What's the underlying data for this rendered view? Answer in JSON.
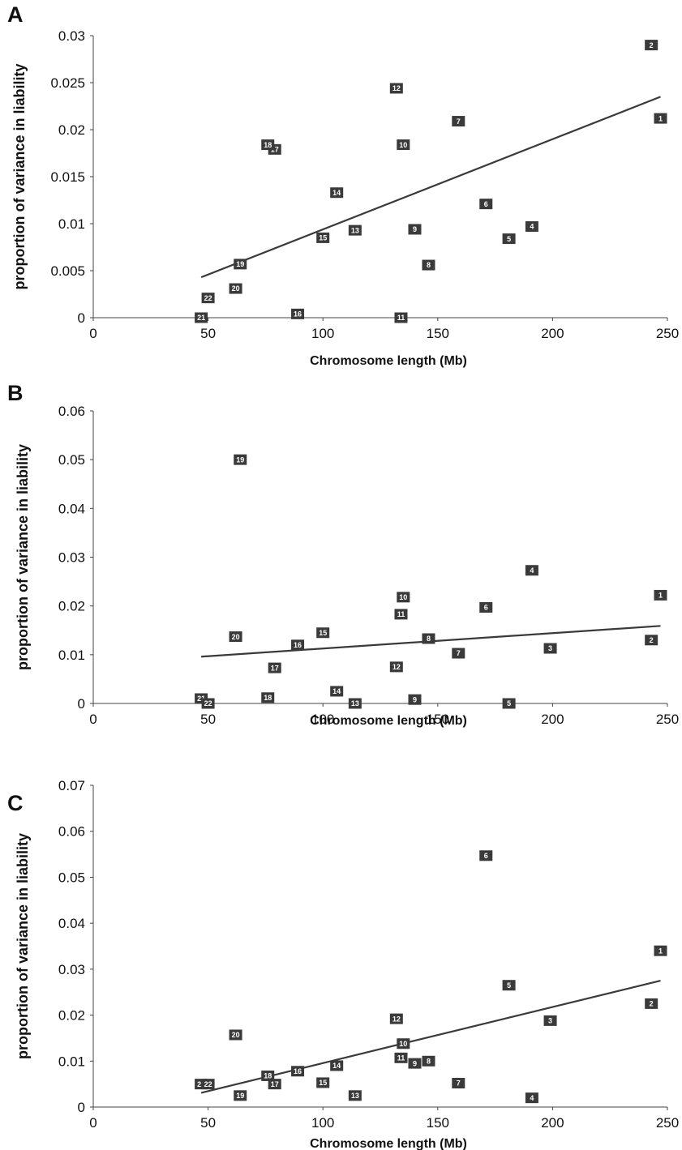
{
  "chart_data": [
    {
      "panel": "A",
      "type": "scatter",
      "xlabel": "Chromosome length (Mb)",
      "ylabel": "proportion of variance in liability",
      "xlim": [
        0,
        250
      ],
      "ylim": [
        0,
        0.03
      ],
      "x_ticks": [
        "0",
        "50",
        "100",
        "150",
        "200",
        "250"
      ],
      "y_ticks": [
        "0",
        "0.005",
        "0.01",
        "0.015",
        "0.02",
        "0.025",
        "0.03"
      ],
      "points": [
        {
          "label": "1",
          "x": 247,
          "y": 0.0212
        },
        {
          "label": "2",
          "x": 243,
          "y": 0.029
        },
        {
          "label": "4",
          "x": 191,
          "y": 0.0097
        },
        {
          "label": "5",
          "x": 181,
          "y": 0.0084
        },
        {
          "label": "6",
          "x": 171,
          "y": 0.0121
        },
        {
          "label": "7",
          "x": 159,
          "y": 0.0209
        },
        {
          "label": "8",
          "x": 146,
          "y": 0.0056
        },
        {
          "label": "9",
          "x": 140,
          "y": 0.0094
        },
        {
          "label": "10",
          "x": 135,
          "y": 0.0184
        },
        {
          "label": "11",
          "x": 134,
          "y": 0.0
        },
        {
          "label": "12",
          "x": 132,
          "y": 0.0244
        },
        {
          "label": "13",
          "x": 114,
          "y": 0.0093
        },
        {
          "label": "14",
          "x": 106,
          "y": 0.0133
        },
        {
          "label": "15",
          "x": 100,
          "y": 0.0085
        },
        {
          "label": "16",
          "x": 89,
          "y": 0.0004
        },
        {
          "label": "17",
          "x": 79,
          "y": 0.0179
        },
        {
          "label": "18",
          "x": 76,
          "y": 0.0184
        },
        {
          "label": "19",
          "x": 64,
          "y": 0.0057
        },
        {
          "label": "20",
          "x": 62,
          "y": 0.0031
        },
        {
          "label": "21",
          "x": 47,
          "y": 0.0
        },
        {
          "label": "22",
          "x": 50,
          "y": 0.0021
        }
      ],
      "trendline": {
        "x": [
          47,
          247
        ],
        "y": [
          0.0043,
          0.0235
        ]
      }
    },
    {
      "panel": "B",
      "type": "scatter",
      "xlabel": "Chromosome length (Mb)",
      "ylabel": "proportion of variance in liability",
      "xlim": [
        0,
        250
      ],
      "ylim": [
        0,
        0.06
      ],
      "x_ticks": [
        "0",
        "50",
        "100",
        "150",
        "200",
        "250"
      ],
      "y_ticks": [
        "0",
        "0.01",
        "0.02",
        "0.03",
        "0.04",
        "0.05",
        "0.06"
      ],
      "points": [
        {
          "label": "1",
          "x": 247,
          "y": 0.0222
        },
        {
          "label": "2",
          "x": 243,
          "y": 0.013
        },
        {
          "label": "3",
          "x": 199,
          "y": 0.0113
        },
        {
          "label": "4",
          "x": 191,
          "y": 0.0273
        },
        {
          "label": "5",
          "x": 181,
          "y": 0.0
        },
        {
          "label": "6",
          "x": 171,
          "y": 0.0197
        },
        {
          "label": "7",
          "x": 159,
          "y": 0.0103
        },
        {
          "label": "8",
          "x": 146,
          "y": 0.0133
        },
        {
          "label": "9",
          "x": 140,
          "y": 0.0008
        },
        {
          "label": "10",
          "x": 135,
          "y": 0.0218
        },
        {
          "label": "11",
          "x": 134,
          "y": 0.0183
        },
        {
          "label": "12",
          "x": 132,
          "y": 0.0075
        },
        {
          "label": "13",
          "x": 114,
          "y": 0.0
        },
        {
          "label": "14",
          "x": 106,
          "y": 0.0025
        },
        {
          "label": "15",
          "x": 100,
          "y": 0.0145
        },
        {
          "label": "16",
          "x": 89,
          "y": 0.012
        },
        {
          "label": "17",
          "x": 79,
          "y": 0.0073
        },
        {
          "label": "18",
          "x": 76,
          "y": 0.0012
        },
        {
          "label": "19",
          "x": 64,
          "y": 0.05
        },
        {
          "label": "20",
          "x": 62,
          "y": 0.0137
        },
        {
          "label": "21",
          "x": 47,
          "y": 0.001
        },
        {
          "label": "22",
          "x": 50,
          "y": 0.0
        }
      ],
      "trendline": {
        "x": [
          47,
          247
        ],
        "y": [
          0.0096,
          0.0159
        ]
      }
    },
    {
      "panel": "C",
      "type": "scatter",
      "xlabel": "Chromosome length (Mb)",
      "ylabel": "proportion of variance in liability",
      "xlim": [
        0,
        250
      ],
      "ylim": [
        0,
        0.07
      ],
      "x_ticks": [
        "0",
        "50",
        "100",
        "150",
        "200",
        "250"
      ],
      "y_ticks": [
        "0",
        "0.01",
        "0.02",
        "0.03",
        "0.04",
        "0.05",
        "0.06",
        "0.07"
      ],
      "points": [
        {
          "label": "1",
          "x": 247,
          "y": 0.034
        },
        {
          "label": "2",
          "x": 243,
          "y": 0.0225
        },
        {
          "label": "3",
          "x": 199,
          "y": 0.0188
        },
        {
          "label": "4",
          "x": 191,
          "y": 0.002
        },
        {
          "label": "5",
          "x": 181,
          "y": 0.0265
        },
        {
          "label": "6",
          "x": 171,
          "y": 0.0547
        },
        {
          "label": "7",
          "x": 159,
          "y": 0.0052
        },
        {
          "label": "8",
          "x": 146,
          "y": 0.01
        },
        {
          "label": "9",
          "x": 140,
          "y": 0.0095
        },
        {
          "label": "10",
          "x": 135,
          "y": 0.0138
        },
        {
          "label": "11",
          "x": 134,
          "y": 0.0107
        },
        {
          "label": "12",
          "x": 132,
          "y": 0.0192
        },
        {
          "label": "13",
          "x": 114,
          "y": 0.0025
        },
        {
          "label": "14",
          "x": 106,
          "y": 0.009
        },
        {
          "label": "15",
          "x": 100,
          "y": 0.0053
        },
        {
          "label": "16",
          "x": 89,
          "y": 0.0078
        },
        {
          "label": "17",
          "x": 79,
          "y": 0.005
        },
        {
          "label": "18",
          "x": 76,
          "y": 0.0068
        },
        {
          "label": "19",
          "x": 64,
          "y": 0.0025
        },
        {
          "label": "20",
          "x": 62,
          "y": 0.0157
        },
        {
          "label": "21",
          "x": 47,
          "y": 0.005
        },
        {
          "label": "22",
          "x": 50,
          "y": 0.005
        }
      ],
      "trendline": {
        "x": [
          47,
          247
        ],
        "y": [
          0.0031,
          0.0275
        ]
      }
    }
  ]
}
